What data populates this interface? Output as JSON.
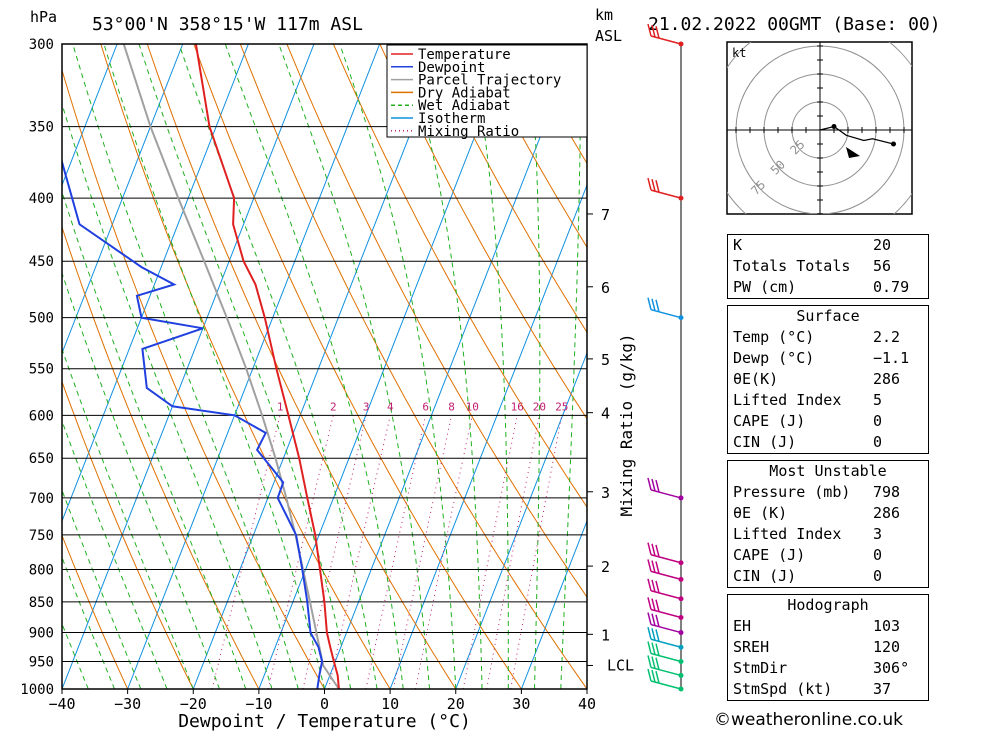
{
  "header": {
    "unit_hpa": "hPa",
    "location": "53°00'N  358°15'W  117m  ASL",
    "unit_km": "km",
    "unit_asl": "ASL",
    "datetime": "21.02.2022  00GMT  (Base: 00)"
  },
  "chart_data": {
    "type": "skew-t",
    "xlabel": "Dewpoint / Temperature (°C)",
    "ylabel_right": "Mixing Ratio (g/kg)",
    "x_range": [
      -40,
      40
    ],
    "x_ticks": [
      "−40",
      "−30",
      "−20",
      "−10",
      "0",
      "10",
      "20",
      "30",
      "40"
    ],
    "x_tick_values": [
      -40,
      -30,
      -20,
      -10,
      0,
      10,
      20,
      30,
      40
    ],
    "pressure_range": [
      1000,
      300
    ],
    "pressure_ticks": [
      "300",
      "350",
      "400",
      "450",
      "500",
      "550",
      "600",
      "650",
      "700",
      "750",
      "800",
      "850",
      "900",
      "950",
      "1000"
    ],
    "pressure_tick_values": [
      300,
      350,
      400,
      450,
      500,
      550,
      600,
      650,
      700,
      750,
      800,
      850,
      900,
      950,
      1000
    ],
    "km_ticks": [
      {
        "label": "1",
        "p": 903
      },
      {
        "label": "2",
        "p": 795
      },
      {
        "label": "3",
        "p": 692
      },
      {
        "label": "4",
        "p": 597
      },
      {
        "label": "5",
        "p": 540
      },
      {
        "label": "6",
        "p": 472
      },
      {
        "label": "7",
        "p": 412
      }
    ],
    "lcl": {
      "label": "LCL",
      "p": 957
    },
    "mixing_ratio_labels": [
      {
        "label": "1",
        "g": 1
      },
      {
        "label": "2",
        "g": 2
      },
      {
        "label": "3",
        "g": 3
      },
      {
        "label": "4",
        "g": 4
      },
      {
        "label": "6",
        "g": 6
      },
      {
        "label": "8",
        "g": 8
      },
      {
        "label": "10",
        "g": 10
      },
      {
        "label": "16",
        "g": 16
      },
      {
        "label": "20",
        "g": 20
      },
      {
        "label": "25",
        "g": 25
      }
    ],
    "legend": [
      {
        "label": "Temperature",
        "color": "#e02020",
        "style": "solid"
      },
      {
        "label": "Dewpoint",
        "color": "#2040e0",
        "style": "solid"
      },
      {
        "label": "Parcel Trajectory",
        "color": "#a0a0a0",
        "style": "solid"
      },
      {
        "label": "Dry Adiabat",
        "color": "#e07000",
        "style": "solid"
      },
      {
        "label": "Wet Adiabat",
        "color": "#20b020",
        "style": "dashed"
      },
      {
        "label": "Isotherm",
        "color": "#1090e0",
        "style": "solid"
      },
      {
        "label": "Mixing Ratio",
        "color": "#c02070",
        "style": "dotted"
      }
    ],
    "temperature": [
      {
        "p": 1000,
        "t": 2.2
      },
      {
        "p": 975,
        "t": 1.2
      },
      {
        "p": 950,
        "t": -0.2
      },
      {
        "p": 925,
        "t": -1.6
      },
      {
        "p": 900,
        "t": -3.0
      },
      {
        "p": 850,
        "t": -5.2
      },
      {
        "p": 800,
        "t": -7.8
      },
      {
        "p": 750,
        "t": -10.6
      },
      {
        "p": 700,
        "t": -14.0
      },
      {
        "p": 650,
        "t": -17.6
      },
      {
        "p": 600,
        "t": -21.8
      },
      {
        "p": 550,
        "t": -26.4
      },
      {
        "p": 500,
        "t": -31.2
      },
      {
        "p": 470,
        "t": -34.6
      },
      {
        "p": 450,
        "t": -37.8
      },
      {
        "p": 420,
        "t": -41.6
      },
      {
        "p": 400,
        "t": -43.0
      },
      {
        "p": 350,
        "t": -51.0
      },
      {
        "p": 300,
        "t": -58.0
      }
    ],
    "dewpoint": [
      {
        "p": 1000,
        "t": -1.1
      },
      {
        "p": 975,
        "t": -1.6
      },
      {
        "p": 950,
        "t": -2.0
      },
      {
        "p": 925,
        "t": -3.4
      },
      {
        "p": 900,
        "t": -5.5
      },
      {
        "p": 850,
        "t": -7.8
      },
      {
        "p": 800,
        "t": -10.5
      },
      {
        "p": 750,
        "t": -13.5
      },
      {
        "p": 700,
        "t": -18.5
      },
      {
        "p": 680,
        "t": -18.6
      },
      {
        "p": 660,
        "t": -21.5
      },
      {
        "p": 640,
        "t": -24.5
      },
      {
        "p": 620,
        "t": -24.2
      },
      {
        "p": 600,
        "t": -30.0
      },
      {
        "p": 590,
        "t": -40.0
      },
      {
        "p": 570,
        "t": -45.0
      },
      {
        "p": 530,
        "t": -48.0
      },
      {
        "p": 510,
        "t": -40.0
      },
      {
        "p": 500,
        "t": -50.0
      },
      {
        "p": 480,
        "t": -52.0
      },
      {
        "p": 470,
        "t": -47.0
      },
      {
        "p": 455,
        "t": -53.0
      },
      {
        "p": 420,
        "t": -65.0
      },
      {
        "p": 350,
        "t": -75.0
      },
      {
        "p": 300,
        "t": -85.0
      }
    ],
    "parcel": [
      {
        "p": 1000,
        "t": 2.2
      },
      {
        "p": 957,
        "t": -1.6
      },
      {
        "p": 900,
        "t": -4.6
      },
      {
        "p": 850,
        "t": -7.4
      },
      {
        "p": 800,
        "t": -10.4
      },
      {
        "p": 750,
        "t": -13.6
      },
      {
        "p": 700,
        "t": -17.2
      },
      {
        "p": 650,
        "t": -21.2
      },
      {
        "p": 600,
        "t": -25.8
      },
      {
        "p": 550,
        "t": -31.0
      },
      {
        "p": 500,
        "t": -37.0
      },
      {
        "p": 450,
        "t": -43.8
      },
      {
        "p": 400,
        "t": -51.5
      },
      {
        "p": 350,
        "t": -60.0
      },
      {
        "p": 300,
        "t": -69.0
      }
    ],
    "wind_barbs": [
      {
        "p": 300,
        "color": "#e02020"
      },
      {
        "p": 400,
        "color": "#e02020"
      },
      {
        "p": 500,
        "color": "#1090e0"
      },
      {
        "p": 700,
        "color": "#a000a0"
      },
      {
        "p": 790,
        "color": "#c00080"
      },
      {
        "p": 815,
        "color": "#c00080"
      },
      {
        "p": 845,
        "color": "#c00080"
      },
      {
        "p": 875,
        "color": "#c00080"
      },
      {
        "p": 900,
        "color": "#a000a0"
      },
      {
        "p": 925,
        "color": "#00a0c0"
      },
      {
        "p": 950,
        "color": "#00c070"
      },
      {
        "p": 975,
        "color": "#00c070"
      },
      {
        "p": 1000,
        "color": "#00c070"
      }
    ]
  },
  "hodograph": {
    "unit": "kt",
    "ring_labels": [
      "25",
      "50",
      "75"
    ],
    "points": [
      [
        0,
        0
      ],
      [
        8,
        -2
      ],
      [
        15,
        3
      ],
      [
        25,
        6
      ],
      [
        30,
        5
      ],
      [
        42,
        8
      ]
    ]
  },
  "indices": {
    "rows": [
      {
        "k": "K",
        "v": "20"
      },
      {
        "k": "Totals Totals",
        "v": "56"
      },
      {
        "k": "PW (cm)",
        "v": "0.79"
      }
    ]
  },
  "surface": {
    "title": "Surface",
    "rows": [
      {
        "k": "Temp (°C)",
        "v": "2.2"
      },
      {
        "k": "Dewp (°C)",
        "v": "−1.1"
      },
      {
        "k": "θE(K)",
        "v": "286"
      },
      {
        "k": "Lifted Index",
        "v": "5"
      },
      {
        "k": "CAPE (J)",
        "v": "0"
      },
      {
        "k": "CIN (J)",
        "v": "0"
      }
    ]
  },
  "most_unstable": {
    "title": "Most Unstable",
    "rows": [
      {
        "k": "Pressure (mb)",
        "v": "798"
      },
      {
        "k": "θE (K)",
        "v": "286"
      },
      {
        "k": "Lifted Index",
        "v": "3"
      },
      {
        "k": "CAPE (J)",
        "v": "0"
      },
      {
        "k": "CIN (J)",
        "v": "0"
      }
    ]
  },
  "hodograph_table": {
    "title": "Hodograph",
    "rows": [
      {
        "k": "EH",
        "v": "103"
      },
      {
        "k": "SREH",
        "v": "120"
      },
      {
        "k": "StmDir",
        "v": "306°"
      },
      {
        "k": "StmSpd (kt)",
        "v": "37"
      }
    ]
  },
  "footer": {
    "copyright": "©weatheronline.co.uk"
  }
}
